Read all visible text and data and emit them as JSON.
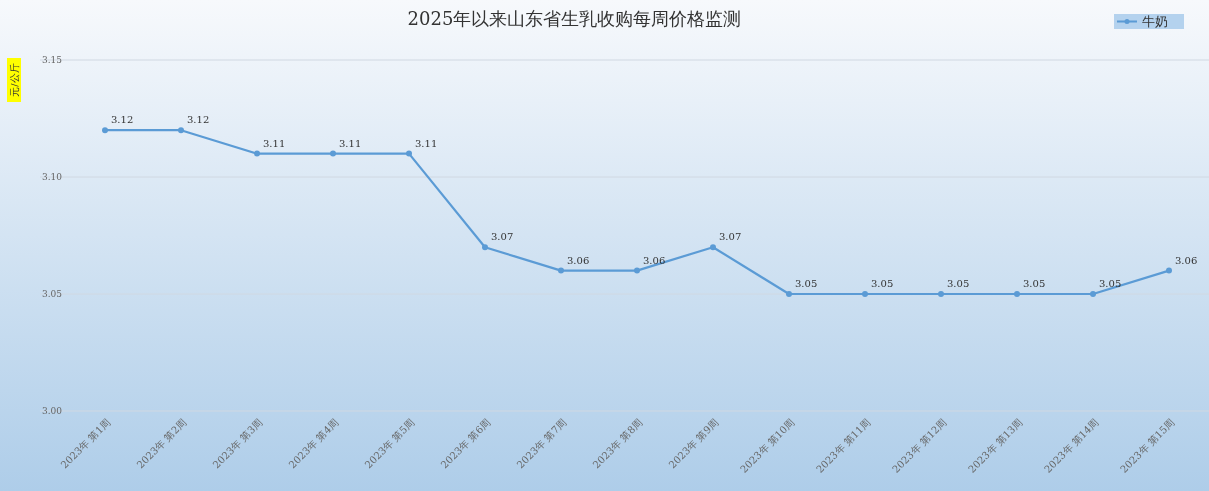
{
  "chart_data": {
    "type": "line",
    "title": "2025年以来山东省生乳收购每周价格监测",
    "ylabel": "元/公斤",
    "categories": [
      "2023年 第1周",
      "2023年 第2周",
      "2023年 第3周",
      "2023年 第4周",
      "2023年 第5周",
      "2023年 第6周",
      "2023年 第7周",
      "2023年 第8周",
      "2023年 第9周",
      "2023年 第10周",
      "2023年 第11周",
      "2023年 第12周",
      "2023年 第13周",
      "2023年 第14周",
      "2023年 第15周"
    ],
    "series": [
      {
        "name": "牛奶",
        "color": "#5b9bd5",
        "values": [
          3.12,
          3.12,
          3.11,
          3.11,
          3.11,
          3.07,
          3.06,
          3.06,
          3.07,
          3.05,
          3.05,
          3.05,
          3.05,
          3.05,
          3.06
        ]
      }
    ],
    "ylim": [
      3.0,
      3.15
    ],
    "yticks": [
      {
        "value": 3.0,
        "label": "3.00"
      },
      {
        "value": 3.05,
        "label": "3.05"
      },
      {
        "value": 3.1,
        "label": "3.10"
      },
      {
        "value": 3.15,
        "label": "3.15"
      }
    ],
    "grid": "y",
    "legend": "top right",
    "marker": "circle",
    "line_style": "solid",
    "data_labels": true
  }
}
